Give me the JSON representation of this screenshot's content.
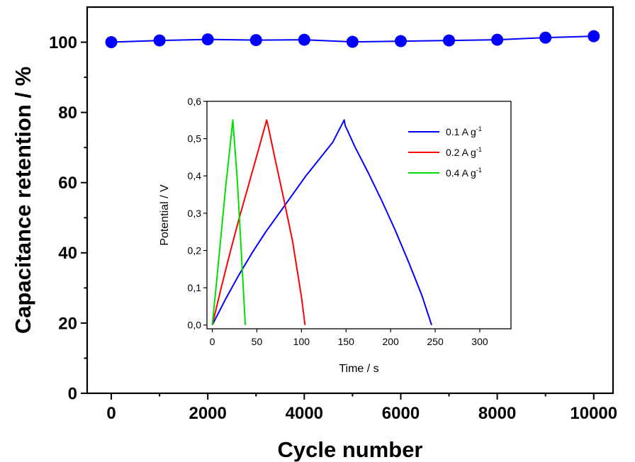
{
  "chart_data": [
    {
      "type": "line",
      "role": "main",
      "xlabel": "Cycle number",
      "ylabel": "Capacitance retention / %",
      "xlim": [
        -500,
        10400
      ],
      "ylim": [
        0,
        110
      ],
      "xticks": [
        0,
        2000,
        4000,
        6000,
        8000,
        10000
      ],
      "yticks": [
        0,
        20,
        40,
        60,
        80,
        100
      ],
      "markers": "filled-circle",
      "grid": false,
      "legend": "none",
      "color": "#0000ff",
      "series": [
        {
          "x": [
            0,
            1000,
            2000,
            3000,
            4000,
            5000,
            6000,
            7000,
            8000,
            9000,
            10000
          ],
          "y": [
            100,
            100.5,
            100.8,
            100.6,
            100.7,
            100.1,
            100.3,
            100.5,
            100.7,
            101.3,
            101.7
          ]
        }
      ]
    },
    {
      "type": "line",
      "role": "inset",
      "xlabel": "Time / s",
      "ylabel": "Potential / V",
      "xlim": [
        -6,
        335
      ],
      "ylim": [
        -0.01,
        0.6
      ],
      "xticks": [
        0,
        50,
        100,
        150,
        200,
        250,
        300
      ],
      "xtick_labels": [
        "0",
        "50",
        "100",
        "150",
        "200",
        "250",
        "300"
      ],
      "yticks": [
        0,
        0.1,
        0.2,
        0.3,
        0.4,
        0.5,
        0.6
      ],
      "ytick_labels": [
        "0,0",
        "0,1",
        "0,2",
        "0,3",
        "0,4",
        "0,5",
        "0,6"
      ],
      "grid": false,
      "legend": "top-right",
      "series": [
        {
          "name_prefix": "0.1 A g",
          "name_sup": "-1",
          "color": "#0000ff",
          "x": [
            0,
            15,
            30,
            45,
            60,
            75,
            90,
            105,
            120,
            135,
            148,
            149,
            152,
            160,
            175,
            190,
            205,
            220,
            235,
            246
          ],
          "y": [
            0,
            0.07,
            0.135,
            0.195,
            0.25,
            0.3,
            0.35,
            0.4,
            0.445,
            0.49,
            0.55,
            0.535,
            0.52,
            0.478,
            0.408,
            0.334,
            0.255,
            0.17,
            0.08,
            0
          ]
        },
        {
          "name_prefix": "0.2 A g",
          "name_sup": "-1",
          "color": "#ff0000",
          "x": [
            0,
            10,
            20,
            30,
            40,
            50,
            61,
            63,
            70,
            80,
            90,
            100,
            104
          ],
          "y": [
            0,
            0.1,
            0.195,
            0.285,
            0.37,
            0.455,
            0.55,
            0.53,
            0.45,
            0.34,
            0.225,
            0.075,
            0
          ]
        },
        {
          "name_prefix": "0.4 A g",
          "name_sup": "-1",
          "color": "#00e000",
          "x": [
            0,
            5,
            10,
            15,
            20,
            23,
            24,
            28,
            32,
            37
          ],
          "y": [
            0,
            0.12,
            0.245,
            0.37,
            0.48,
            0.55,
            0.52,
            0.39,
            0.22,
            0
          ]
        }
      ]
    }
  ]
}
